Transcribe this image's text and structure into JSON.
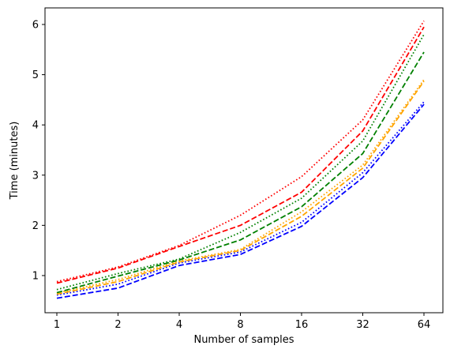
{
  "chart_data": {
    "type": "line",
    "title": "",
    "xlabel": "Number of samples",
    "ylabel": "Time (minutes)",
    "x_scale": "log2",
    "categories": [
      "1",
      "2",
      "4",
      "8",
      "16",
      "32",
      "64"
    ],
    "x": [
      1,
      2,
      4,
      8,
      16,
      32,
      64
    ],
    "ylim": [
      0.26,
      6.33
    ],
    "yticks": [
      "1",
      "2",
      "3",
      "4",
      "5",
      "6"
    ],
    "grid": false,
    "legend": "none",
    "series": [
      {
        "color": "#0000ff",
        "dash": "dashed",
        "values": [
          0.55,
          0.75,
          1.2,
          1.42,
          1.98,
          2.95,
          4.41
        ]
      },
      {
        "color": "#0000ff",
        "dash": "dotted",
        "values": [
          0.61,
          0.83,
          1.25,
          1.47,
          2.06,
          3.05,
          4.46
        ]
      },
      {
        "color": "#ffa500",
        "dash": "dashed",
        "values": [
          0.63,
          0.88,
          1.27,
          1.5,
          2.18,
          3.14,
          4.87
        ]
      },
      {
        "color": "#ffa500",
        "dash": "dotted",
        "values": [
          0.65,
          0.92,
          1.29,
          1.52,
          2.27,
          3.2,
          4.9
        ]
      },
      {
        "color": "#008000",
        "dash": "dashed",
        "values": [
          0.66,
          0.99,
          1.31,
          1.71,
          2.37,
          3.43,
          5.45
        ]
      },
      {
        "color": "#008000",
        "dash": "dotted",
        "values": [
          0.72,
          1.04,
          1.33,
          1.86,
          2.54,
          3.68,
          5.8
        ]
      },
      {
        "color": "#ff0000",
        "dash": "dashed",
        "values": [
          0.85,
          1.15,
          1.58,
          2.0,
          2.66,
          3.88,
          5.95
        ]
      },
      {
        "color": "#ff0000",
        "dash": "dotted",
        "values": [
          0.88,
          1.17,
          1.6,
          2.2,
          2.97,
          4.1,
          6.07
        ]
      }
    ]
  }
}
